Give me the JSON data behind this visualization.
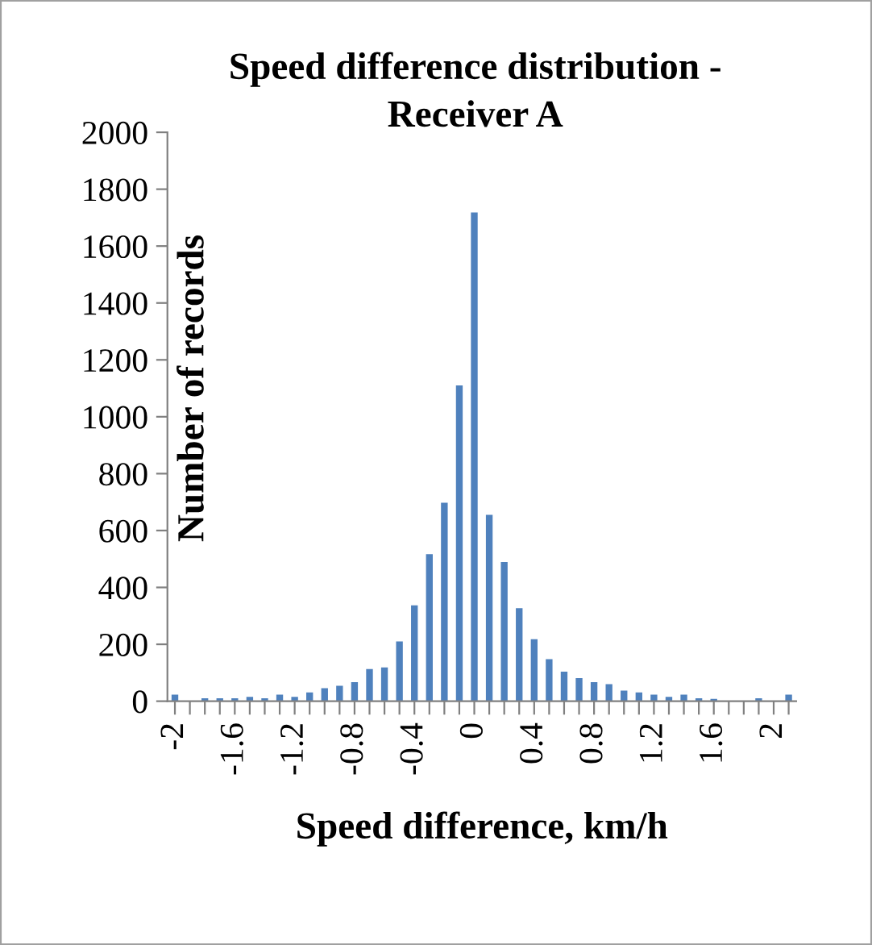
{
  "chart_data": {
    "type": "bar",
    "title": "Speed difference distribution -\nReceiver A",
    "xlabel": "Speed difference, km/h",
    "ylabel": "Number of records",
    "categories": [
      "-2",
      null,
      null,
      null,
      "-1.6",
      null,
      null,
      null,
      "-1.2",
      null,
      null,
      null,
      "-0.8",
      null,
      null,
      null,
      "-0.4",
      null,
      null,
      null,
      "0",
      null,
      null,
      null,
      "0.4",
      null,
      null,
      null,
      "0.8",
      null,
      null,
      null,
      "1.2",
      null,
      null,
      null,
      "1.6",
      null,
      null,
      null,
      "2",
      null
    ],
    "values": [
      23,
      0,
      10,
      10,
      10,
      15,
      10,
      23,
      15,
      31,
      46,
      54,
      67,
      113,
      119,
      210,
      337,
      517,
      698,
      1110,
      1718,
      655,
      489,
      327,
      218,
      148,
      104,
      81,
      67,
      60,
      37,
      31,
      23,
      15,
      23,
      10,
      8,
      0,
      0,
      10,
      0,
      23
    ],
    "color": "#4f81bd",
    "ylim": [
      0,
      2000
    ],
    "yticks": [
      0,
      200,
      400,
      600,
      800,
      1000,
      1200,
      1400,
      1600,
      1800,
      2000
    ],
    "grid": false,
    "legend": false
  }
}
